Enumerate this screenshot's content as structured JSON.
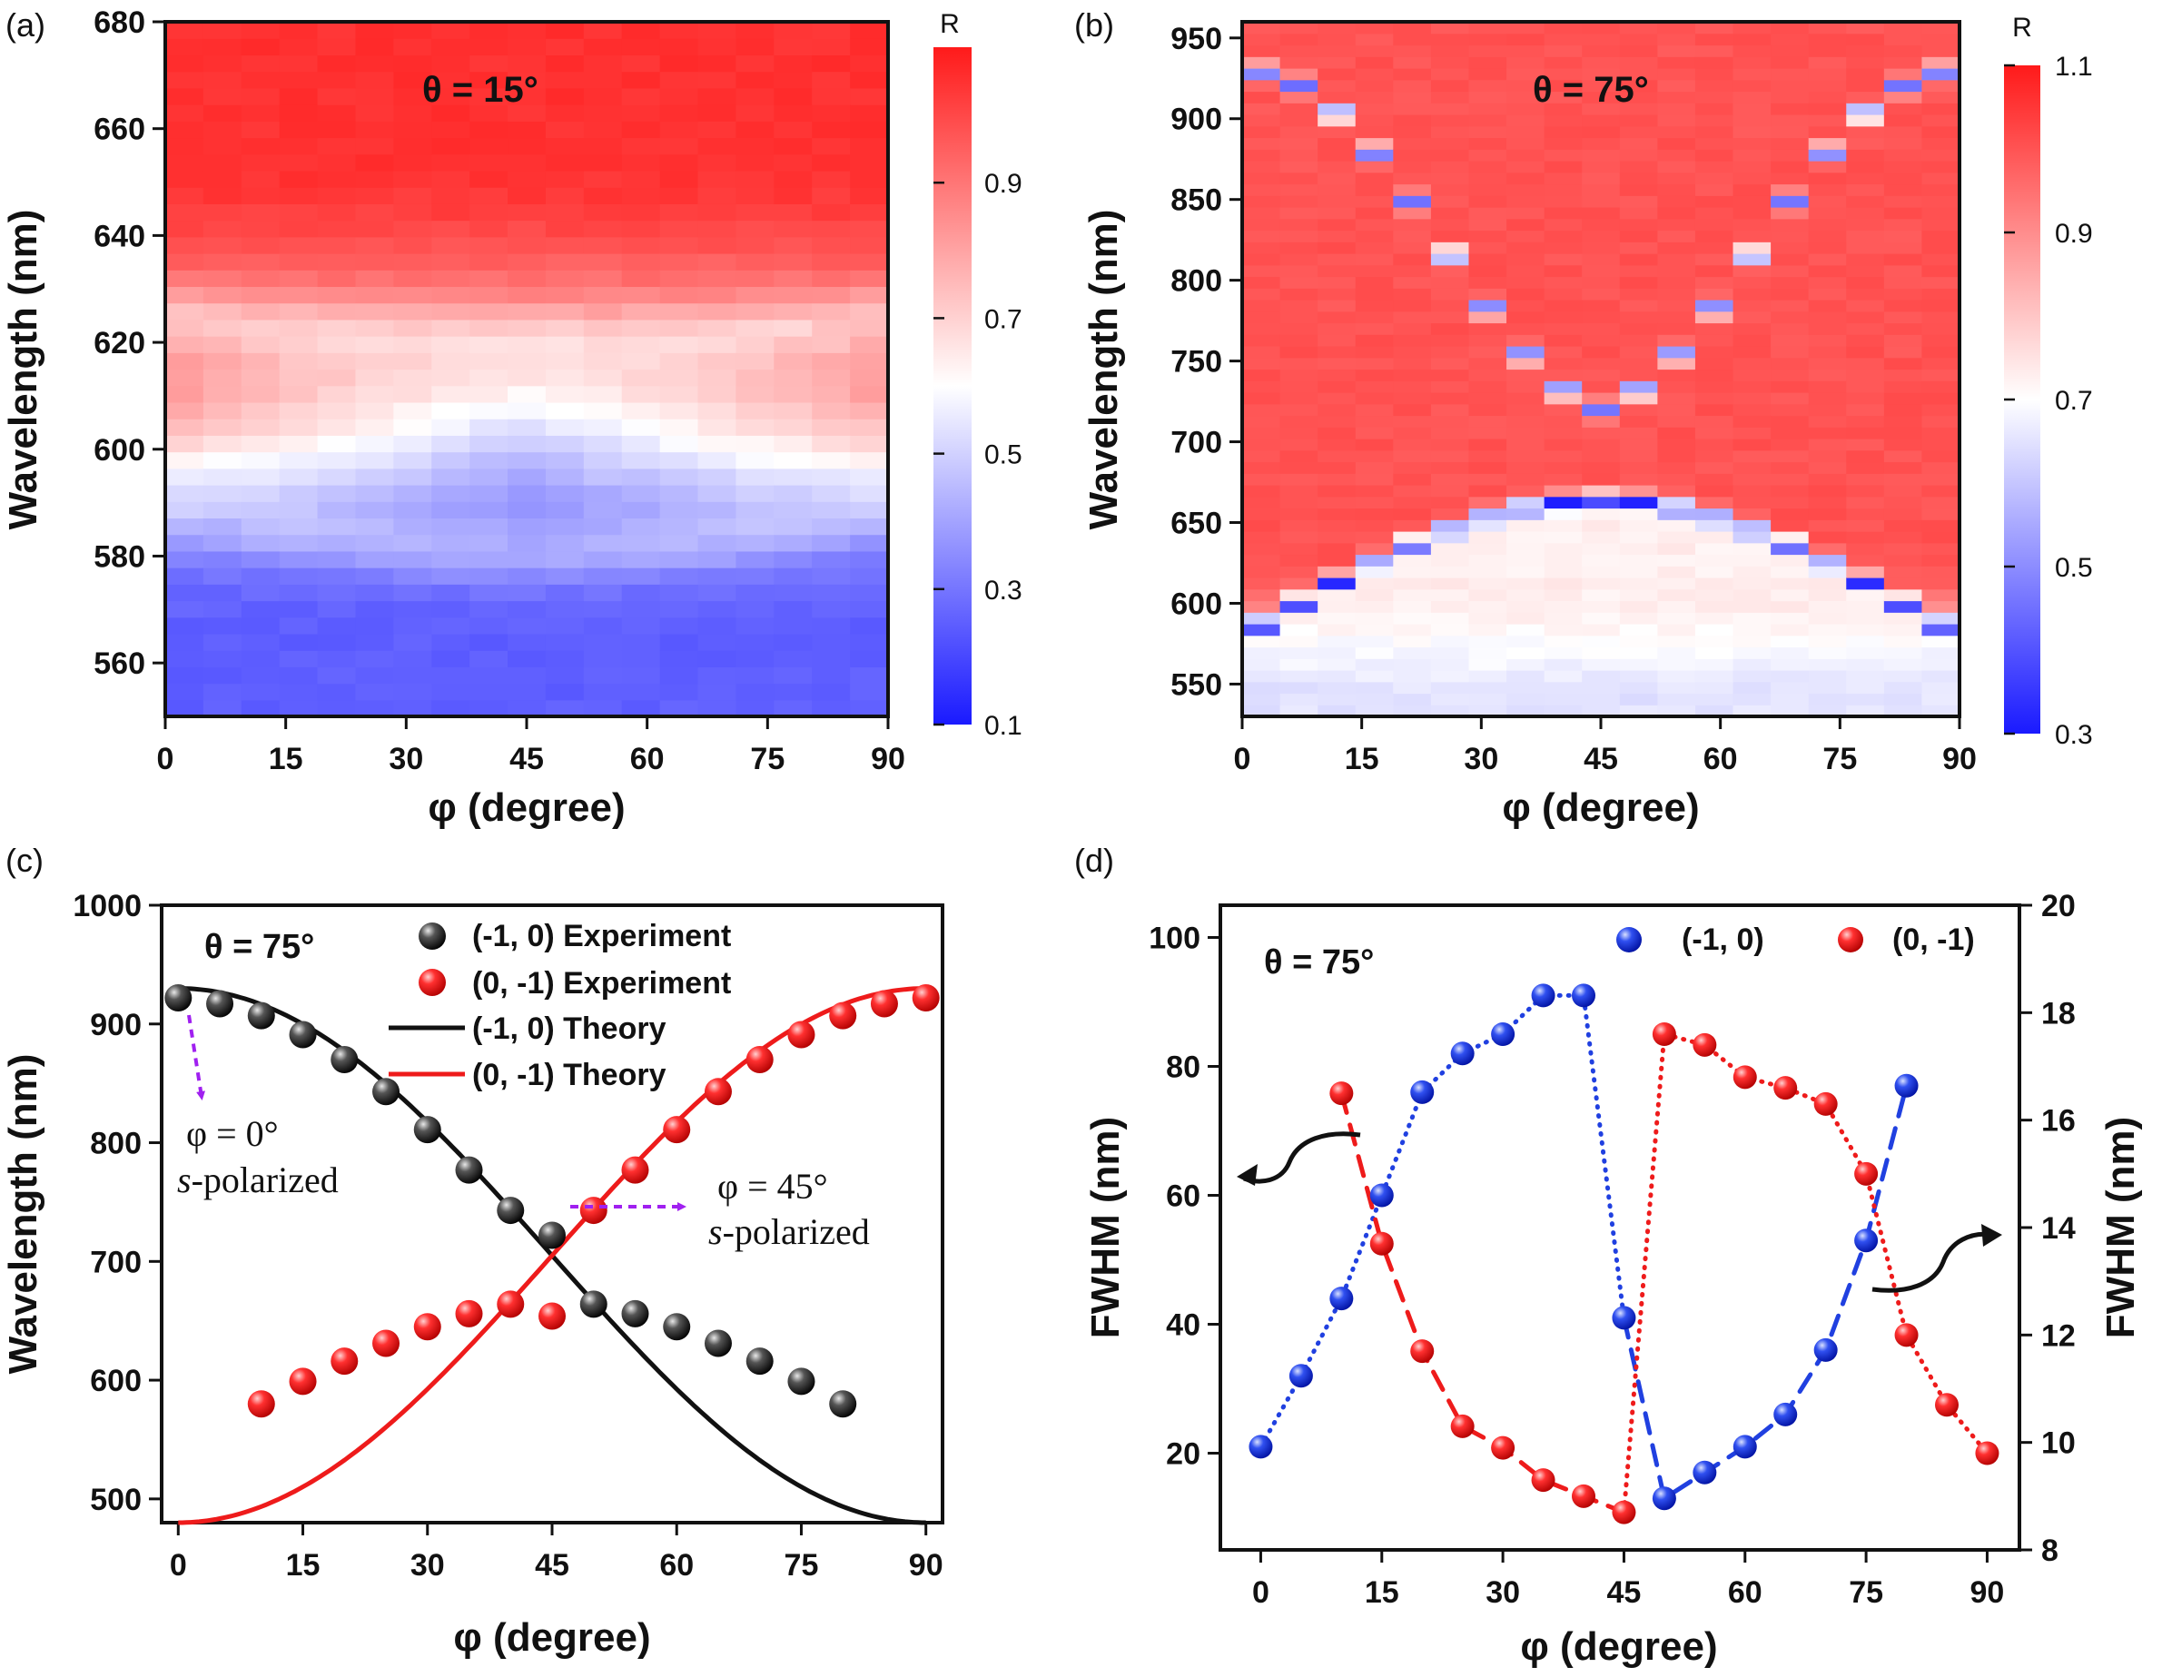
{
  "chart_data": [
    {
      "panel": "(a)",
      "type": "heatmap",
      "annotation": {
        "prefix": "θ = ",
        "value": "15°"
      },
      "xlabel": "φ (degree)",
      "ylabel": "Wavelength (nm)",
      "xlim": [
        0,
        90
      ],
      "ylim": [
        550,
        680
      ],
      "xticks": [
        "0",
        "15",
        "30",
        "45",
        "60",
        "75",
        "90"
      ],
      "yticks": [
        "560",
        "580",
        "600",
        "620",
        "640",
        "660",
        "680"
      ],
      "grid": {
        "x_columns": 19,
        "y_rows": 42
      },
      "colorbar": {
        "title": "R",
        "range": [
          0.1,
          1.1
        ],
        "ticks": [
          "0.1",
          "0.3",
          "0.5",
          "0.7",
          "0.9"
        ]
      },
      "features": {
        "dip_low": [
          [
            0,
            590
          ],
          [
            45,
            580
          ],
          [
            90,
            590
          ]
        ],
        "dip_high": [
          [
            0,
            625
          ],
          [
            45,
            620
          ],
          [
            90,
            625
          ]
        ]
      }
    },
    {
      "panel": "(b)",
      "type": "heatmap",
      "annotation": {
        "prefix": "θ = ",
        "value": "75°"
      },
      "xlabel": "φ (degree)",
      "ylabel": "Wavelength (nm)",
      "xlim": [
        0,
        90
      ],
      "ylim": [
        530,
        960
      ],
      "xticks": [
        "0",
        "15",
        "30",
        "45",
        "60",
        "75",
        "90"
      ],
      "yticks": [
        "550",
        "600",
        "650",
        "700",
        "750",
        "800",
        "850",
        "900",
        "950"
      ],
      "grid": {
        "x_columns": 19,
        "y_rows": 60
      },
      "colorbar": {
        "title": "R",
        "range": [
          0.3,
          1.1
        ],
        "ticks": [
          "0.3",
          "0.5",
          "0.7",
          "0.9",
          "1.1"
        ]
      }
    },
    {
      "panel": "(c)",
      "type": "scatter",
      "annotation": {
        "prefix": "θ = ",
        "value": "75°"
      },
      "xlabel": "φ (degree)",
      "ylabel": "Wavelength (nm)",
      "xlim": [
        -2,
        92
      ],
      "ylim": [
        480,
        1000
      ],
      "xticks": [
        "0",
        "15",
        "30",
        "45",
        "60",
        "75",
        "90"
      ],
      "yticks": [
        "500",
        "600",
        "700",
        "800",
        "900",
        "1000"
      ],
      "legend_position": "top",
      "series": [
        {
          "name": "(-1, 0) Experiment",
          "kind": "points",
          "color": "#111111",
          "x": [
            0,
            5,
            10,
            15,
            20,
            25,
            30,
            35,
            40,
            45,
            50,
            55,
            60,
            65,
            70,
            75,
            80
          ],
          "y": [
            922,
            917,
            907,
            891,
            870,
            843,
            811,
            777,
            743,
            722,
            664,
            656,
            645,
            631,
            616,
            599,
            580
          ]
        },
        {
          "name": "(0, -1) Experiment",
          "kind": "points",
          "color": "#ee1b1b",
          "x": [
            10,
            15,
            20,
            25,
            30,
            35,
            40,
            45,
            50,
            55,
            60,
            65,
            70,
            75,
            80,
            85,
            90
          ],
          "y": [
            580,
            599,
            616,
            631,
            645,
            656,
            664,
            654,
            743,
            777,
            811,
            843,
            870,
            891,
            907,
            917,
            922
          ]
        },
        {
          "name": "(-1, 0) Theory",
          "kind": "line",
          "color": "#111111",
          "x": [],
          "y": []
        },
        {
          "name": "(0, -1) Theory",
          "kind": "line",
          "color": "#ee1b1b",
          "x": [],
          "y": []
        }
      ],
      "annotations": [
        {
          "phi": "φ = 0°",
          "pol": "s",
          "suffix": "-polarized"
        },
        {
          "phi": "φ = 45°",
          "pol": "s",
          "suffix": "-polarized"
        }
      ]
    },
    {
      "panel": "(d)",
      "type": "scatter",
      "annotation": {
        "prefix": "θ = ",
        "value": "75°"
      },
      "xlabel": "φ (degree)",
      "ylabel": "FWHM (nm)",
      "y2label": "FWHM (nm)",
      "xlim": [
        -5,
        94
      ],
      "ylim": [
        5,
        105
      ],
      "y2lim": [
        8,
        20
      ],
      "xticks": [
        "0",
        "15",
        "30",
        "45",
        "60",
        "75",
        "90"
      ],
      "yticks": [
        "20",
        "40",
        "60",
        "80",
        "100"
      ],
      "y2ticks": [
        "8",
        "10",
        "12",
        "14",
        "16",
        "18",
        "20"
      ],
      "series": [
        {
          "name": "(-1, 0)",
          "axis": "left",
          "color": "#2040e0",
          "x": [
            0,
            5,
            10,
            15,
            20,
            25,
            30,
            35,
            40,
            45,
            50,
            55,
            60,
            65,
            70,
            75,
            80
          ],
          "y": [
            21,
            32,
            44,
            60,
            76,
            82,
            85,
            91,
            91,
            41,
            13,
            17,
            21,
            26,
            36,
            53,
            77
          ]
        },
        {
          "name": "(0, -1)",
          "axis": "right",
          "color": "#ee1b1b",
          "x": [
            10,
            15,
            20,
            25,
            30,
            35,
            40,
            45,
            50,
            55,
            60,
            65,
            70,
            75,
            80,
            85,
            90
          ],
          "y": [
            16.5,
            13.7,
            11.7,
            10.3,
            9.9,
            9.3,
            9.0,
            8.7,
            17.6,
            17.4,
            16.8,
            16.6,
            16.3,
            15.0,
            12.0,
            10.7,
            9.8
          ]
        }
      ]
    }
  ]
}
